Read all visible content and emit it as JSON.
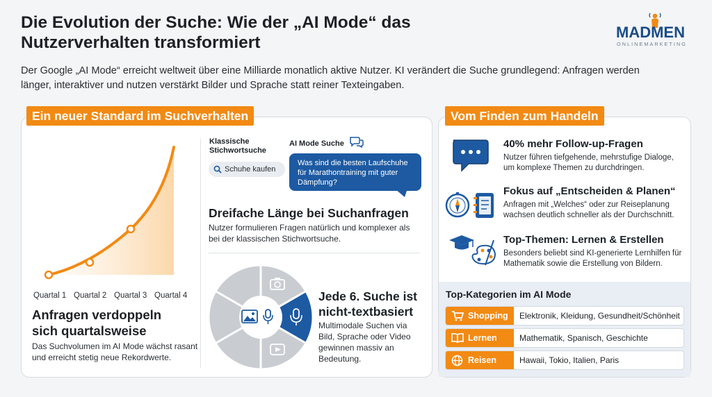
{
  "header": {
    "title": "Die Evolution der Suche: Wie der „AI Mode“ das Nutzerverhalten transformiert",
    "subtitle": "Der Google „AI Mode“ erreicht weltweit über eine Milliarde monatlich aktive Nutzer. KI verändert die Suche grundlegend: Anfragen werden länger, interaktiver und nutzen verstärkt Bilder und Sprache statt reiner Texteingaben."
  },
  "logo": {
    "word": "MADMEN",
    "sub": "ONLINEMARKETING",
    "color": "#1b4c86",
    "accent": "#f28a13"
  },
  "colors": {
    "accent": "#f28a13",
    "blue": "#1d5aa2",
    "grey": "#c9ccd1"
  },
  "left": {
    "tag": "Ein neuer Standard im Suchverhalten",
    "chart": {
      "categories": [
        "Quartal 1",
        "Quartal 2",
        "Quartal 3",
        "Quartal 4"
      ],
      "heading": "Anfragen verdoppeln sich quartalsweise",
      "text": "Das Suchvolumen im AI Mode wächst rasant und erreicht stetig neue Rekordwerte."
    },
    "query": {
      "classic_label": "Klassische Stichwortsuche",
      "classic_query": "Schuhe kaufen",
      "ai_label": "AI Mode Suche",
      "ai_query": "Was sind die besten Laufschuhe für Marathontraining mit guter Dämpfung?",
      "heading": "Dreifache Länge bei Suchanfragen",
      "text": "Nutzer formulieren Fragen natürlich und komplexer als bei der klassischen Stichwortsuche."
    },
    "multimodal": {
      "heading": "Jede 6. Suche ist nicht-textbasiert",
      "text": "Multimodale Suchen via Bild, Sprache oder Video gewinnen massiv an Bedeutung."
    }
  },
  "right": {
    "tag": "Vom Finden zum Handeln",
    "features": [
      {
        "icon": "chat-bubble-icon",
        "title": "40% mehr Follow-up-Fragen",
        "text": "Nutzer führen tiefgehende, mehrstufige Dialoge, um komplexe Themen zu durchdringen."
      },
      {
        "icon": "compass-planner-icon",
        "title": "Fokus auf „Entscheiden & Planen“",
        "text": "Anfragen mit „Welches“ oder zur Reiseplanung wachsen deutlich schneller als der Durchschnitt."
      },
      {
        "icon": "graduation-palette-icon",
        "title": "Top-Themen: Lernen & Erstellen",
        "text": "Besonders beliebt sind KI-generierte Lernhilfen für Mathematik sowie die Erstellung von Bildern."
      }
    ],
    "categories_title": "Top-Kategorien im AI Mode",
    "categories": [
      {
        "icon": "cart-icon",
        "label": "Shopping",
        "value": "Elektronik, Kleidung, Gesundheit/Schönheit"
      },
      {
        "icon": "book-icon",
        "label": "Lernen",
        "value": "Mathematik, Spanisch, Geschichte"
      },
      {
        "icon": "globe-icon",
        "label": "Reisen",
        "value": "Hawaii, Tokio, Italien, Paris"
      }
    ]
  }
}
